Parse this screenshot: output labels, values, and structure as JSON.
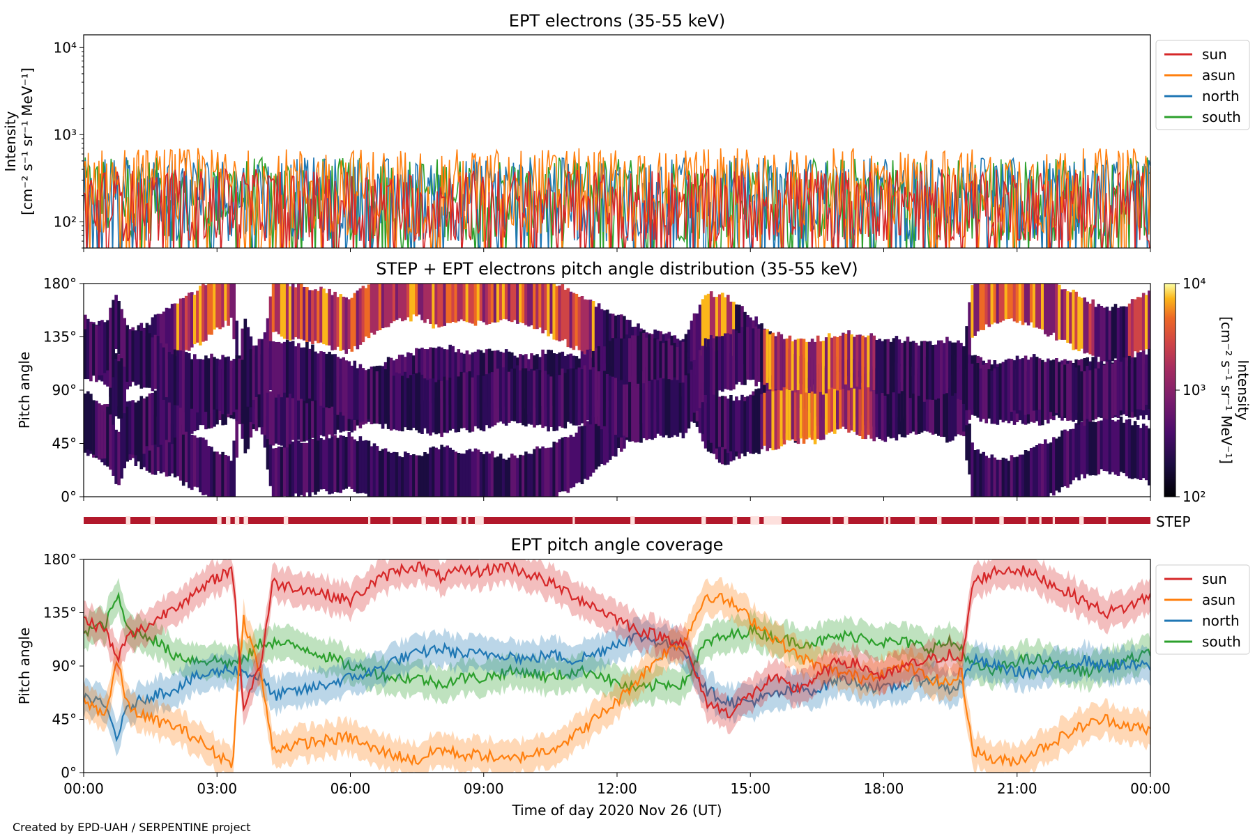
{
  "credit": "Created by EPD-UAH / SERPENTINE project",
  "chart_data": [
    {
      "type": "line",
      "title": "EPT electrons (35-55 keV)",
      "ylabel_line1": "Intensity",
      "ylabel_line2": "[cm⁻² s⁻¹ sr⁻¹ MeV⁻¹]",
      "yscale": "log",
      "ylim": [
        50,
        14000
      ],
      "ytick_labels": [
        "10²",
        "10³",
        "10⁴"
      ],
      "ytick_values": [
        100,
        1000,
        10000
      ],
      "xlim_hours": [
        0,
        24
      ],
      "legend_position": "outside-right",
      "series": [
        {
          "name": "sun",
          "color": "#d62728",
          "typical_range": [
            60,
            400
          ]
        },
        {
          "name": "asun",
          "color": "#ff7f0e",
          "typical_range": [
            70,
            700
          ]
        },
        {
          "name": "north",
          "color": "#1f77b4",
          "typical_range": [
            60,
            550
          ]
        },
        {
          "name": "south",
          "color": "#2ca02c",
          "typical_range": [
            60,
            550
          ]
        }
      ]
    },
    {
      "type": "heatmap",
      "title": "STEP + EPT electrons pitch angle distribution (35-55 keV)",
      "ylabel": "Pitch angle",
      "ylim": [
        0,
        180
      ],
      "ytick_labels": [
        "0°",
        "45°",
        "90°",
        "135°",
        "180°"
      ],
      "ytick_values": [
        0,
        45,
        90,
        135,
        180
      ],
      "colorbar": {
        "label_line1": "Intensity",
        "label_line2": "[cm⁻² s⁻¹ sr⁻¹ MeV⁻¹]",
        "scale": "log",
        "range": [
          100,
          10000
        ],
        "tick_labels": [
          "10²",
          "10³",
          "10⁴"
        ],
        "tick_values": [
          100,
          1000,
          10000
        ],
        "colormap": "inferno"
      }
    },
    {
      "type": "bar",
      "label": "STEP",
      "color": "#b2182b",
      "gaps_hours": [
        [
          0.95,
          1.05
        ],
        [
          1.5,
          1.6
        ],
        [
          3.0,
          3.1
        ],
        [
          3.2,
          3.3
        ],
        [
          3.4,
          3.5
        ],
        [
          3.6,
          3.7
        ],
        [
          4.5,
          4.6
        ],
        [
          6.4,
          6.45
        ],
        [
          6.9,
          6.95
        ],
        [
          7.6,
          7.7
        ],
        [
          8.0,
          8.05
        ],
        [
          8.4,
          8.5
        ],
        [
          8.6,
          8.65
        ],
        [
          8.8,
          9.0
        ],
        [
          11.0,
          11.05
        ],
        [
          12.3,
          12.4
        ],
        [
          13.9,
          14.0
        ],
        [
          14.6,
          14.7
        ],
        [
          15.0,
          15.2
        ],
        [
          15.3,
          15.7
        ],
        [
          16.8,
          16.85
        ],
        [
          17.1,
          17.2
        ],
        [
          18.0,
          18.05
        ],
        [
          18.1,
          18.15
        ],
        [
          18.7,
          18.8
        ],
        [
          19.2,
          19.3
        ],
        [
          20.0,
          20.05
        ],
        [
          20.6,
          20.7
        ],
        [
          21.2,
          21.25
        ],
        [
          21.5,
          21.55
        ],
        [
          21.8,
          21.85
        ],
        [
          22.4,
          22.5
        ],
        [
          23.0,
          23.05
        ],
        [
          24.0,
          24.0
        ]
      ]
    },
    {
      "type": "line",
      "title": "EPT pitch angle coverage",
      "ylabel": "Pitch angle",
      "xlabel": "Time of day 2020 Nov 26 (UT)",
      "ylim": [
        0,
        180
      ],
      "ytick_labels": [
        "0°",
        "45°",
        "90°",
        "135°",
        "180°"
      ],
      "ytick_values": [
        0,
        45,
        90,
        135,
        180
      ],
      "xtick_labels": [
        "00:00",
        "03:00",
        "06:00",
        "09:00",
        "12:00",
        "15:00",
        "18:00",
        "21:00",
        "00:00"
      ],
      "xtick_hours": [
        0,
        3,
        6,
        9,
        12,
        15,
        18,
        21,
        24
      ],
      "legend_position": "outside-right",
      "band_halfwidth_deg": 14,
      "x_hours": [
        0,
        0.5,
        0.75,
        1,
        1.5,
        2,
        2.5,
        3,
        3.35,
        3.5,
        3.6,
        4,
        4.25,
        5,
        6,
        6.5,
        7,
        7.5,
        8,
        8.5,
        9,
        9.5,
        10,
        10.5,
        11,
        11.5,
        12,
        12.5,
        13,
        13.5,
        14,
        14.5,
        15,
        15.5,
        16,
        16.5,
        17,
        17.5,
        18,
        18.5,
        19,
        19.5,
        19.75,
        20,
        20.5,
        21,
        21.5,
        22,
        22.5,
        23,
        23.5,
        24
      ],
      "series": [
        {
          "name": "sun",
          "color": "#d62728",
          "values": [
            130,
            120,
            95,
            115,
            125,
            140,
            150,
            165,
            172,
            100,
            55,
            95,
            160,
            155,
            145,
            160,
            170,
            175,
            165,
            170,
            170,
            175,
            168,
            160,
            150,
            140,
            130,
            120,
            115,
            110,
            60,
            50,
            65,
            80,
            70,
            80,
            95,
            90,
            80,
            90,
            95,
            100,
            90,
            160,
            170,
            172,
            165,
            155,
            145,
            135,
            140,
            150
          ]
        },
        {
          "name": "asun",
          "color": "#ff7f0e",
          "values": [
            60,
            50,
            95,
            55,
            45,
            40,
            30,
            15,
            8,
            90,
            130,
            80,
            20,
            25,
            30,
            20,
            15,
            10,
            20,
            15,
            15,
            10,
            15,
            20,
            30,
            45,
            60,
            80,
            100,
            110,
            150,
            145,
            130,
            115,
            100,
            90,
            85,
            80,
            85,
            90,
            80,
            75,
            85,
            20,
            10,
            10,
            20,
            30,
            40,
            45,
            40,
            35
          ]
        },
        {
          "name": "north",
          "color": "#1f77b4",
          "values": [
            65,
            55,
            30,
            55,
            65,
            70,
            80,
            85,
            88,
            85,
            85,
            80,
            65,
            70,
            80,
            85,
            95,
            100,
            105,
            100,
            100,
            100,
            95,
            100,
            95,
            100,
            110,
            115,
            110,
            105,
            70,
            60,
            60,
            65,
            70,
            70,
            80,
            75,
            70,
            75,
            80,
            70,
            75,
            95,
            90,
            85,
            85,
            90,
            95,
            90,
            90,
            90
          ]
        },
        {
          "name": "south",
          "color": "#2ca02c",
          "values": [
            120,
            125,
            150,
            120,
            115,
            100,
            95,
            95,
            92,
            95,
            95,
            110,
            110,
            105,
            90,
            85,
            80,
            80,
            75,
            80,
            80,
            85,
            85,
            80,
            85,
            85,
            75,
            70,
            75,
            75,
            110,
            115,
            120,
            115,
            110,
            110,
            115,
            115,
            110,
            110,
            105,
            110,
            105,
            90,
            85,
            95,
            95,
            90,
            85,
            90,
            95,
            100
          ]
        }
      ]
    }
  ]
}
